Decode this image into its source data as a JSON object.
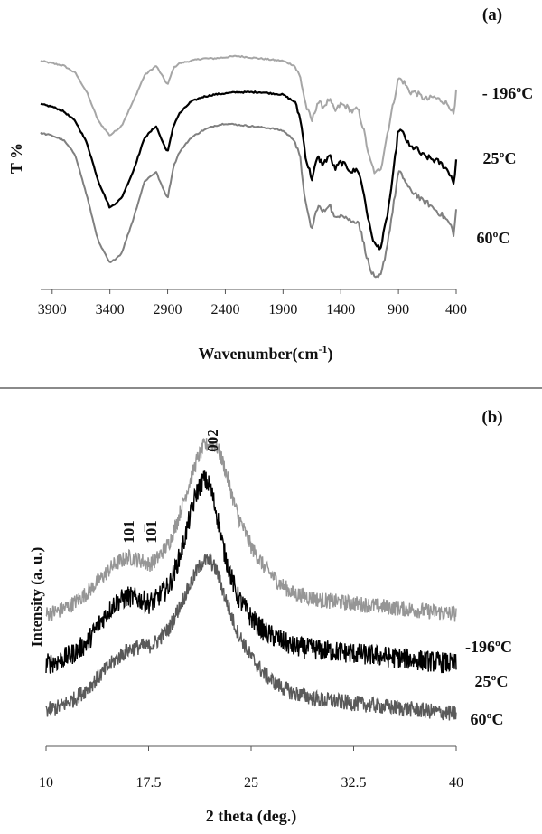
{
  "chart_data": [
    {
      "type": "line",
      "panel_label": "(a)",
      "xlabel_main": "Wavenumber(cm",
      "xlabel_sup": "-1",
      "xlabel_end": ")",
      "ylabel": "T %",
      "x_reversed": true,
      "xlim": [
        4000,
        400
      ],
      "xticks": [
        3900,
        3400,
        2900,
        2400,
        1900,
        1400,
        900,
        400
      ],
      "series": [
        {
          "name": "- 196ºC",
          "color": "#a6a6a6",
          "x": [
            4000,
            3900,
            3800,
            3700,
            3600,
            3500,
            3400,
            3300,
            3200,
            3100,
            3000,
            2950,
            2900,
            2850,
            2800,
            2700,
            2600,
            2500,
            2400,
            2300,
            2200,
            2100,
            2000,
            1900,
            1800,
            1750,
            1700,
            1650,
            1600,
            1550,
            1500,
            1450,
            1400,
            1350,
            1300,
            1250,
            1200,
            1150,
            1100,
            1050,
            1000,
            950,
            900,
            850,
            800,
            750,
            700,
            650,
            600,
            550,
            500,
            450,
            420,
            400
          ],
          "y": [
            89,
            88,
            87,
            84,
            76,
            64,
            58,
            62,
            72,
            83,
            87,
            83,
            79,
            86,
            88,
            89,
            90,
            90,
            90.5,
            91,
            90.5,
            90,
            89.5,
            89,
            87,
            82,
            70,
            64,
            72,
            70,
            73,
            68,
            71,
            70,
            68,
            69,
            60,
            48,
            42,
            45,
            58,
            70,
            82,
            80,
            76,
            76,
            74,
            73,
            74,
            73,
            72,
            70,
            66,
            76
          ]
        },
        {
          "name": "25ºC",
          "color": "#000000",
          "x": [
            4000,
            3900,
            3800,
            3700,
            3600,
            3500,
            3400,
            3300,
            3200,
            3100,
            3000,
            2950,
            2900,
            2850,
            2800,
            2700,
            2600,
            2500,
            2400,
            2300,
            2200,
            2100,
            2000,
            1900,
            1800,
            1750,
            1700,
            1650,
            1600,
            1550,
            1500,
            1450,
            1400,
            1350,
            1300,
            1250,
            1200,
            1150,
            1100,
            1050,
            1000,
            950,
            900,
            850,
            800,
            750,
            700,
            650,
            600,
            550,
            500,
            450,
            420,
            400
          ],
          "y": [
            71,
            70,
            68,
            64,
            55,
            39,
            28,
            32,
            43,
            57,
            62,
            56,
            51,
            62,
            67,
            72,
            74,
            75,
            75.5,
            76,
            76,
            76,
            75.5,
            75,
            72,
            65,
            48,
            40,
            49,
            46,
            50,
            44,
            47,
            45,
            43,
            44,
            34,
            20,
            12,
            12,
            24,
            40,
            61,
            58,
            53,
            53,
            50,
            49,
            48,
            47,
            45,
            42,
            38,
            48
          ]
        },
        {
          "name": "60ºC",
          "color": "#808080",
          "x": [
            4000,
            3900,
            3800,
            3700,
            3600,
            3500,
            3400,
            3300,
            3200,
            3100,
            3000,
            2950,
            2900,
            2850,
            2800,
            2700,
            2600,
            2500,
            2400,
            2300,
            2200,
            2100,
            2000,
            1900,
            1800,
            1750,
            1700,
            1650,
            1600,
            1550,
            1500,
            1450,
            1400,
            1350,
            1300,
            1250,
            1200,
            1150,
            1100,
            1050,
            1000,
            950,
            900,
            850,
            800,
            750,
            700,
            650,
            600,
            550,
            500,
            450,
            420,
            400
          ],
          "y": [
            59,
            58,
            56,
            50,
            33,
            14,
            5,
            9,
            23,
            39,
            43,
            37,
            32,
            45,
            51,
            57,
            60,
            62,
            63,
            62.5,
            62,
            61.5,
            61,
            60,
            56,
            48,
            28,
            19,
            29,
            26,
            30,
            23,
            26,
            24,
            22,
            23,
            13,
            3,
            -2,
            0,
            12,
            27,
            43,
            40,
            35,
            34,
            31,
            30,
            28,
            26,
            24,
            21,
            17,
            27
          ]
        }
      ]
    },
    {
      "type": "line",
      "panel_label": "(b)",
      "xlabel": "2 theta (deg.)",
      "ylabel": "Intensity (a. u.)",
      "xlim": [
        10,
        40
      ],
      "xticks": [
        "10",
        "17.5",
        "25",
        "32.5",
        "40"
      ],
      "peak_labels": [
        "002",
        "101",
        "10̅1"
      ],
      "series": [
        {
          "name": "-196ºC",
          "color": "#969696",
          "x": [
            10,
            11,
            12,
            13,
            14,
            15,
            16,
            17,
            17.5,
            18,
            19,
            19.5,
            20,
            20.5,
            21,
            21.5,
            22,
            22.5,
            23,
            23.5,
            24,
            25,
            26,
            27,
            28,
            30,
            32.5,
            35,
            37.5,
            40
          ],
          "y": [
            52,
            53,
            55,
            58,
            62,
            66,
            68,
            67,
            66,
            67,
            72,
            77,
            83,
            89,
            95,
            99,
            100,
            99,
            94,
            87,
            80,
            71,
            65,
            61,
            58,
            56,
            55,
            54,
            53,
            52
          ]
        },
        {
          "name": "25ºC",
          "color": "#000000",
          "x": [
            10,
            11,
            12,
            13,
            14,
            15,
            16,
            17,
            17.5,
            18,
            19,
            19.5,
            20,
            20.5,
            21,
            21.5,
            22,
            22.5,
            23,
            23.5,
            24,
            25,
            26,
            27,
            28,
            30,
            32.5,
            35,
            37.5,
            40
          ],
          "y": [
            38,
            39,
            41,
            44,
            50,
            55,
            57,
            56,
            55,
            56,
            60,
            65,
            71,
            79,
            86,
            90,
            88,
            80,
            70,
            63,
            57,
            51,
            47,
            45,
            43,
            42,
            41,
            40,
            39,
            38
          ]
        },
        {
          "name": "60ºC",
          "color": "#5a5a5a",
          "x": [
            10,
            11,
            12,
            13,
            14,
            15,
            16,
            17,
            17.5,
            18,
            19,
            19.5,
            20,
            20.5,
            21,
            21.5,
            22,
            22.5,
            23,
            23.5,
            24,
            25,
            26,
            27,
            28,
            30,
            32.5,
            35,
            37.5,
            40
          ],
          "y": [
            25,
            26,
            28,
            31,
            35,
            39,
            42,
            43,
            43,
            44,
            48,
            52,
            56,
            60,
            64,
            67,
            67,
            64,
            58,
            52,
            47,
            40,
            35,
            32,
            30,
            28,
            27,
            26,
            25,
            24
          ]
        }
      ]
    }
  ]
}
